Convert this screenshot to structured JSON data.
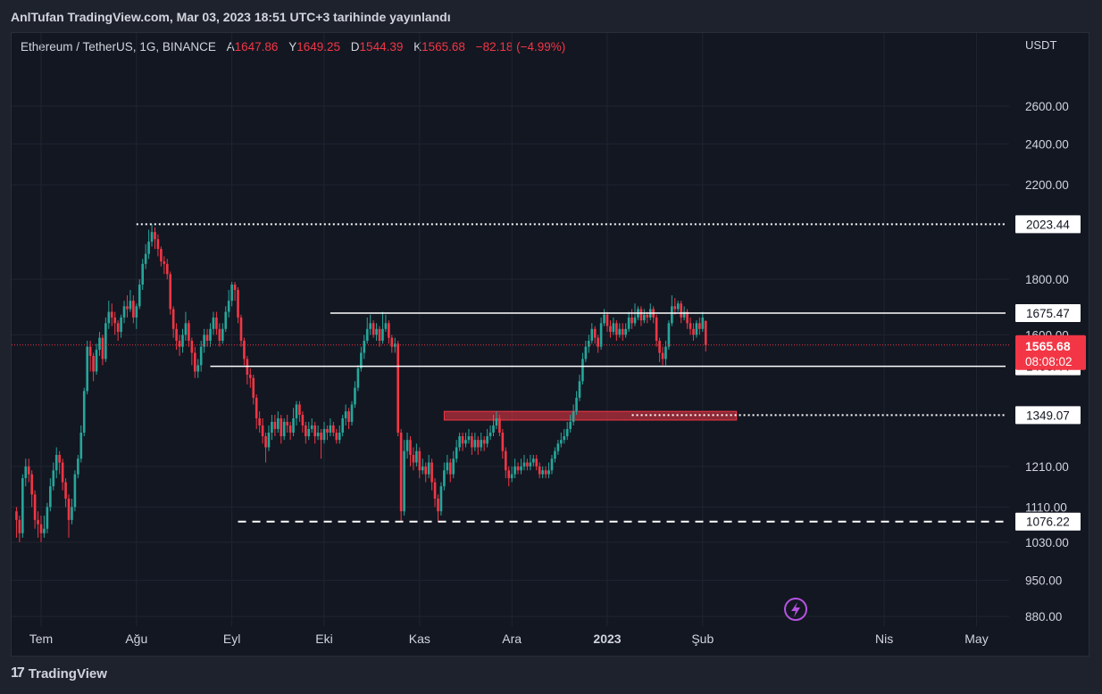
{
  "header": {
    "publish_line": "AnlTufan TradingView.com, Mar 03, 2023 18:51 UTC+3 tarihinde yayınlandı"
  },
  "legend": {
    "symbol": "Ethereum / TetherUS, 1G, BINANCE",
    "open_label": "A",
    "open_value": "1647.86",
    "high_label": "Y",
    "high_value": "1649.25",
    "low_label": "D",
    "low_value": "1544.39",
    "close_label": "K",
    "close_value": "1565.68",
    "change": "−82.18 (−4.99%)"
  },
  "axis": {
    "unit": "USDT"
  },
  "footer": {
    "brand": "TradingView"
  },
  "colors": {
    "up": "#26a69a",
    "down": "#f23645",
    "background": "#131722",
    "frame": "#1e222d",
    "grid": "#1f2430",
    "price_tag": "#f23645"
  },
  "icons": {
    "lightning": "lightning-icon",
    "logo": "tradingview-logo-icon"
  },
  "chart_data": {
    "type": "candlestick",
    "ylim": [
      850,
      2800
    ],
    "y_ticks": [
      "2600.00",
      "2400.00",
      "2200.00",
      "1800.00",
      "1600.00",
      "1210.00",
      "1110.00",
      "1030.00",
      "950.00",
      "880.00"
    ],
    "y_tick_values": [
      2600,
      2400,
      2200,
      1800,
      1600,
      1210,
      1110,
      1030,
      950,
      880
    ],
    "x_ticks": [
      "Tem",
      "Ağu",
      "Eyl",
      "Eki",
      "Kas",
      "Ara",
      "2023",
      "Şub",
      "Nis",
      "May"
    ],
    "x_tick_dates": [
      "2022-07-01",
      "2022-08-01",
      "2022-09-01",
      "2022-10-01",
      "2022-11-01",
      "2022-12-01",
      "2023-01-01",
      "2023-02-01",
      "2023-04-01",
      "2023-05-01"
    ],
    "current_price": {
      "value": "1565.68",
      "countdown": "08:08:02"
    },
    "horizontal_levels": [
      {
        "value": 2023.44,
        "label": "2023.44",
        "style": "dotted",
        "from": "2022-08-01"
      },
      {
        "value": 1675.47,
        "label": "1675.47",
        "style": "solid",
        "from": "2022-10-03"
      },
      {
        "value": 1496.44,
        "label": "1496.44",
        "style": "solid",
        "from": "2022-08-25"
      },
      {
        "value": 1349.07,
        "label": "1349.07",
        "style": "dotted",
        "from": "2023-01-09"
      },
      {
        "value": 1076.22,
        "label": "1076.22",
        "style": "dashed",
        "from": "2022-09-03"
      }
    ],
    "zone": {
      "from": "2022-11-09",
      "to": "2023-02-12",
      "top": 1360,
      "bottom": 1335
    },
    "start_date": "2022-06-23",
    "candles": [
      [
        1100,
        1080,
        1110,
        1040
      ],
      [
        1080,
        1050,
        1090,
        1030
      ],
      [
        1050,
        1180,
        1190,
        1040
      ],
      [
        1180,
        1210,
        1230,
        1160
      ],
      [
        1210,
        1190,
        1230,
        1170
      ],
      [
        1190,
        1140,
        1200,
        1110
      ],
      [
        1140,
        1080,
        1150,
        1060
      ],
      [
        1080,
        1070,
        1100,
        1040
      ],
      [
        1070,
        1050,
        1090,
        1030
      ],
      [
        1050,
        1060,
        1090,
        1040
      ],
      [
        1060,
        1110,
        1120,
        1050
      ],
      [
        1110,
        1160,
        1180,
        1100
      ],
      [
        1160,
        1200,
        1220,
        1150
      ],
      [
        1200,
        1240,
        1260,
        1180
      ],
      [
        1240,
        1220,
        1250,
        1190
      ],
      [
        1220,
        1170,
        1230,
        1150
      ],
      [
        1170,
        1130,
        1180,
        1110
      ],
      [
        1130,
        1080,
        1140,
        1040
      ],
      [
        1080,
        1110,
        1130,
        1070
      ],
      [
        1110,
        1190,
        1200,
        1100
      ],
      [
        1190,
        1230,
        1240,
        1180
      ],
      [
        1230,
        1300,
        1320,
        1220
      ],
      [
        1300,
        1420,
        1430,
        1290
      ],
      [
        1420,
        1560,
        1580,
        1410
      ],
      [
        1560,
        1530,
        1580,
        1480
      ],
      [
        1530,
        1480,
        1540,
        1450
      ],
      [
        1480,
        1550,
        1570,
        1470
      ],
      [
        1550,
        1590,
        1610,
        1530
      ],
      [
        1590,
        1520,
        1600,
        1500
      ],
      [
        1520,
        1640,
        1660,
        1510
      ],
      [
        1640,
        1680,
        1720,
        1620
      ],
      [
        1680,
        1660,
        1710,
        1630
      ],
      [
        1660,
        1640,
        1680,
        1600
      ],
      [
        1640,
        1610,
        1650,
        1580
      ],
      [
        1610,
        1660,
        1670,
        1590
      ],
      [
        1660,
        1700,
        1720,
        1640
      ],
      [
        1700,
        1690,
        1740,
        1660
      ],
      [
        1690,
        1720,
        1760,
        1680
      ],
      [
        1720,
        1660,
        1740,
        1640
      ],
      [
        1660,
        1700,
        1710,
        1620
      ],
      [
        1700,
        1780,
        1800,
        1690
      ],
      [
        1780,
        1860,
        1880,
        1760
      ],
      [
        1860,
        1900,
        1940,
        1840
      ],
      [
        1900,
        1950,
        2000,
        1880
      ],
      [
        1950,
        1990,
        2023,
        1930
      ],
      [
        1990,
        1960,
        2010,
        1920
      ],
      [
        1960,
        1920,
        1980,
        1890
      ],
      [
        1920,
        1870,
        1930,
        1850
      ],
      [
        1870,
        1860,
        1890,
        1820
      ],
      [
        1860,
        1820,
        1880,
        1800
      ],
      [
        1820,
        1690,
        1830,
        1670
      ],
      [
        1690,
        1620,
        1700,
        1590
      ],
      [
        1620,
        1580,
        1640,
        1550
      ],
      [
        1580,
        1560,
        1600,
        1530
      ],
      [
        1560,
        1600,
        1620,
        1540
      ],
      [
        1600,
        1640,
        1680,
        1580
      ],
      [
        1640,
        1580,
        1650,
        1560
      ],
      [
        1580,
        1540,
        1590,
        1500
      ],
      [
        1540,
        1480,
        1560,
        1460
      ],
      [
        1480,
        1500,
        1520,
        1460
      ],
      [
        1500,
        1560,
        1580,
        1480
      ],
      [
        1560,
        1600,
        1620,
        1540
      ],
      [
        1600,
        1580,
        1620,
        1560
      ],
      [
        1580,
        1620,
        1640,
        1560
      ],
      [
        1620,
        1660,
        1680,
        1600
      ],
      [
        1660,
        1620,
        1680,
        1600
      ],
      [
        1620,
        1580,
        1640,
        1560
      ],
      [
        1580,
        1620,
        1640,
        1570
      ],
      [
        1620,
        1680,
        1700,
        1610
      ],
      [
        1680,
        1720,
        1760,
        1660
      ],
      [
        1720,
        1780,
        1790,
        1700
      ],
      [
        1780,
        1760,
        1790,
        1720
      ],
      [
        1760,
        1660,
        1770,
        1640
      ],
      [
        1660,
        1580,
        1670,
        1560
      ],
      [
        1580,
        1520,
        1590,
        1500
      ],
      [
        1520,
        1470,
        1530,
        1440
      ],
      [
        1470,
        1460,
        1490,
        1430
      ],
      [
        1460,
        1400,
        1470,
        1380
      ],
      [
        1400,
        1340,
        1410,
        1310
      ],
      [
        1340,
        1320,
        1360,
        1300
      ],
      [
        1320,
        1290,
        1340,
        1270
      ],
      [
        1290,
        1260,
        1300,
        1220
      ],
      [
        1260,
        1300,
        1320,
        1250
      ],
      [
        1300,
        1330,
        1350,
        1280
      ],
      [
        1330,
        1310,
        1350,
        1290
      ],
      [
        1310,
        1340,
        1360,
        1300
      ],
      [
        1340,
        1290,
        1350,
        1270
      ],
      [
        1290,
        1330,
        1340,
        1280
      ],
      [
        1330,
        1320,
        1350,
        1300
      ],
      [
        1320,
        1300,
        1330,
        1280
      ],
      [
        1300,
        1340,
        1370,
        1290
      ],
      [
        1340,
        1380,
        1390,
        1320
      ],
      [
        1380,
        1350,
        1390,
        1330
      ],
      [
        1350,
        1320,
        1360,
        1300
      ],
      [
        1320,
        1290,
        1330,
        1270
      ],
      [
        1290,
        1310,
        1330,
        1280
      ],
      [
        1310,
        1320,
        1340,
        1300
      ],
      [
        1320,
        1290,
        1330,
        1270
      ],
      [
        1290,
        1300,
        1320,
        1280
      ],
      [
        1300,
        1280,
        1310,
        1230
      ],
      [
        1280,
        1310,
        1330,
        1270
      ],
      [
        1310,
        1300,
        1320,
        1280
      ],
      [
        1300,
        1320,
        1340,
        1290
      ],
      [
        1320,
        1300,
        1330,
        1290
      ],
      [
        1300,
        1280,
        1310,
        1270
      ],
      [
        1280,
        1300,
        1320,
        1270
      ],
      [
        1300,
        1340,
        1350,
        1290
      ],
      [
        1340,
        1360,
        1380,
        1320
      ],
      [
        1360,
        1330,
        1370,
        1310
      ],
      [
        1330,
        1380,
        1390,
        1320
      ],
      [
        1380,
        1430,
        1450,
        1370
      ],
      [
        1430,
        1490,
        1500,
        1420
      ],
      [
        1490,
        1540,
        1560,
        1480
      ],
      [
        1540,
        1580,
        1600,
        1520
      ],
      [
        1580,
        1620,
        1660,
        1570
      ],
      [
        1620,
        1640,
        1670,
        1600
      ],
      [
        1640,
        1600,
        1650,
        1590
      ],
      [
        1600,
        1620,
        1640,
        1580
      ],
      [
        1620,
        1580,
        1630,
        1560
      ],
      [
        1580,
        1620,
        1680,
        1570
      ],
      [
        1620,
        1640,
        1670,
        1610
      ],
      [
        1640,
        1590,
        1650,
        1570
      ],
      [
        1590,
        1560,
        1600,
        1540
      ],
      [
        1560,
        1570,
        1590,
        1540
      ],
      [
        1570,
        1300,
        1580,
        1290
      ],
      [
        1300,
        1100,
        1310,
        1076
      ],
      [
        1100,
        1250,
        1280,
        1090
      ],
      [
        1250,
        1280,
        1300,
        1230
      ],
      [
        1280,
        1240,
        1290,
        1210
      ],
      [
        1240,
        1220,
        1260,
        1200
      ],
      [
        1220,
        1250,
        1270,
        1210
      ],
      [
        1250,
        1200,
        1260,
        1180
      ],
      [
        1200,
        1210,
        1230,
        1190
      ],
      [
        1210,
        1190,
        1220,
        1170
      ],
      [
        1190,
        1220,
        1240,
        1180
      ],
      [
        1220,
        1170,
        1230,
        1150
      ],
      [
        1170,
        1130,
        1180,
        1110
      ],
      [
        1130,
        1100,
        1140,
        1076
      ],
      [
        1100,
        1160,
        1170,
        1090
      ],
      [
        1160,
        1200,
        1220,
        1150
      ],
      [
        1200,
        1220,
        1240,
        1190
      ],
      [
        1220,
        1190,
        1230,
        1170
      ],
      [
        1190,
        1230,
        1250,
        1180
      ],
      [
        1230,
        1260,
        1280,
        1220
      ],
      [
        1260,
        1290,
        1300,
        1250
      ],
      [
        1290,
        1270,
        1300,
        1250
      ],
      [
        1270,
        1280,
        1300,
        1260
      ],
      [
        1280,
        1290,
        1310,
        1270
      ],
      [
        1290,
        1260,
        1300,
        1240
      ],
      [
        1260,
        1280,
        1300,
        1250
      ],
      [
        1280,
        1260,
        1290,
        1240
      ],
      [
        1260,
        1280,
        1300,
        1250
      ],
      [
        1280,
        1270,
        1290,
        1250
      ],
      [
        1270,
        1290,
        1310,
        1260
      ],
      [
        1290,
        1300,
        1320,
        1280
      ],
      [
        1300,
        1320,
        1350,
        1290
      ],
      [
        1320,
        1340,
        1360,
        1310
      ],
      [
        1340,
        1300,
        1350,
        1290
      ],
      [
        1300,
        1250,
        1310,
        1230
      ],
      [
        1250,
        1200,
        1260,
        1180
      ],
      [
        1200,
        1180,
        1210,
        1160
      ],
      [
        1180,
        1190,
        1210,
        1170
      ],
      [
        1190,
        1210,
        1230,
        1180
      ],
      [
        1210,
        1200,
        1220,
        1190
      ],
      [
        1200,
        1210,
        1230,
        1190
      ],
      [
        1210,
        1220,
        1240,
        1200
      ],
      [
        1220,
        1210,
        1230,
        1200
      ],
      [
        1210,
        1220,
        1240,
        1200
      ],
      [
        1220,
        1230,
        1240,
        1210
      ],
      [
        1230,
        1210,
        1240,
        1200
      ],
      [
        1210,
        1190,
        1220,
        1180
      ],
      [
        1190,
        1200,
        1210,
        1180
      ],
      [
        1200,
        1190,
        1210,
        1180
      ],
      [
        1190,
        1200,
        1220,
        1180
      ],
      [
        1200,
        1230,
        1240,
        1190
      ],
      [
        1230,
        1250,
        1260,
        1220
      ],
      [
        1250,
        1270,
        1280,
        1240
      ],
      [
        1270,
        1280,
        1300,
        1260
      ],
      [
        1280,
        1290,
        1310,
        1270
      ],
      [
        1290,
        1310,
        1330,
        1280
      ],
      [
        1310,
        1330,
        1350,
        1300
      ],
      [
        1330,
        1360,
        1380,
        1320
      ],
      [
        1360,
        1400,
        1420,
        1350
      ],
      [
        1400,
        1450,
        1470,
        1390
      ],
      [
        1450,
        1520,
        1540,
        1440
      ],
      [
        1520,
        1560,
        1580,
        1510
      ],
      [
        1560,
        1580,
        1600,
        1540
      ],
      [
        1580,
        1620,
        1640,
        1570
      ],
      [
        1620,
        1590,
        1630,
        1570
      ],
      [
        1590,
        1560,
        1600,
        1540
      ],
      [
        1560,
        1640,
        1660,
        1550
      ],
      [
        1640,
        1670,
        1690,
        1630
      ],
      [
        1670,
        1630,
        1680,
        1610
      ],
      [
        1630,
        1610,
        1650,
        1590
      ],
      [
        1610,
        1640,
        1660,
        1600
      ],
      [
        1640,
        1600,
        1650,
        1580
      ],
      [
        1600,
        1620,
        1640,
        1590
      ],
      [
        1620,
        1600,
        1640,
        1580
      ],
      [
        1600,
        1620,
        1640,
        1590
      ],
      [
        1620,
        1660,
        1680,
        1610
      ],
      [
        1660,
        1640,
        1690,
        1620
      ],
      [
        1640,
        1660,
        1710,
        1630
      ],
      [
        1660,
        1690,
        1700,
        1650
      ],
      [
        1690,
        1650,
        1700,
        1630
      ],
      [
        1650,
        1670,
        1690,
        1640
      ],
      [
        1670,
        1660,
        1680,
        1640
      ],
      [
        1660,
        1690,
        1710,
        1650
      ],
      [
        1690,
        1660,
        1700,
        1640
      ],
      [
        1660,
        1580,
        1670,
        1560
      ],
      [
        1580,
        1540,
        1590,
        1510
      ],
      [
        1540,
        1520,
        1560,
        1500
      ],
      [
        1520,
        1560,
        1580,
        1500
      ],
      [
        1560,
        1640,
        1650,
        1550
      ],
      [
        1640,
        1700,
        1740,
        1630
      ],
      [
        1700,
        1690,
        1730,
        1670
      ],
      [
        1690,
        1710,
        1720,
        1680
      ],
      [
        1710,
        1660,
        1720,
        1640
      ],
      [
        1660,
        1680,
        1700,
        1650
      ],
      [
        1680,
        1640,
        1690,
        1620
      ],
      [
        1640,
        1620,
        1660,
        1600
      ],
      [
        1620,
        1600,
        1640,
        1580
      ],
      [
        1600,
        1640,
        1650,
        1590
      ],
      [
        1640,
        1620,
        1660,
        1600
      ],
      [
        1620,
        1660,
        1680,
        1610
      ],
      [
        1647.86,
        1565.68,
        1649.25,
        1544.39
      ]
    ]
  }
}
